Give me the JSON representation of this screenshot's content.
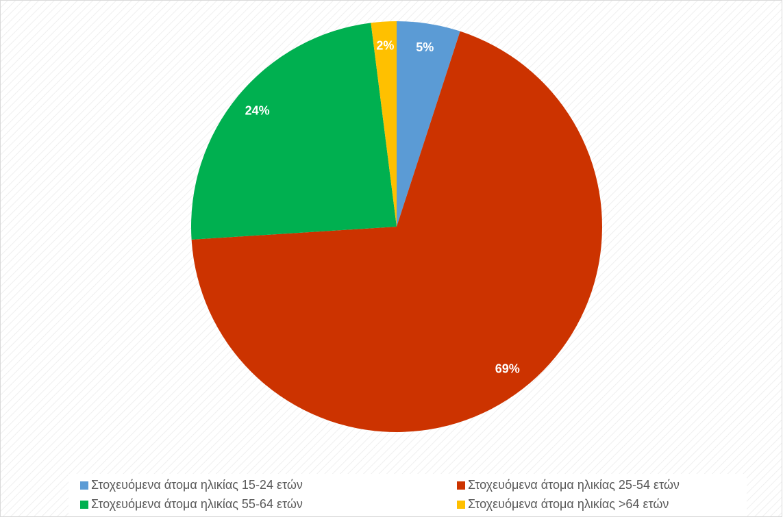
{
  "chart_data": {
    "type": "pie",
    "categories": [
      "Στοχευόμενα άτομα ηλικίας 15-24 ετών",
      "Στοχευόμενα άτομα ηλικίας 25-54 ετών",
      "Στοχευόμενα άτομα ηλικίας 55-64 ετών",
      "Στοχευόμενα άτομα ηλικίας >64 ετών"
    ],
    "values": [
      5,
      69,
      24,
      2
    ],
    "value_labels": [
      "5%",
      "69%",
      "24%",
      "2%"
    ],
    "colors": [
      "#5b9bd5",
      "#cc3300",
      "#00b050",
      "#ffc000"
    ],
    "legend": "bottom"
  }
}
